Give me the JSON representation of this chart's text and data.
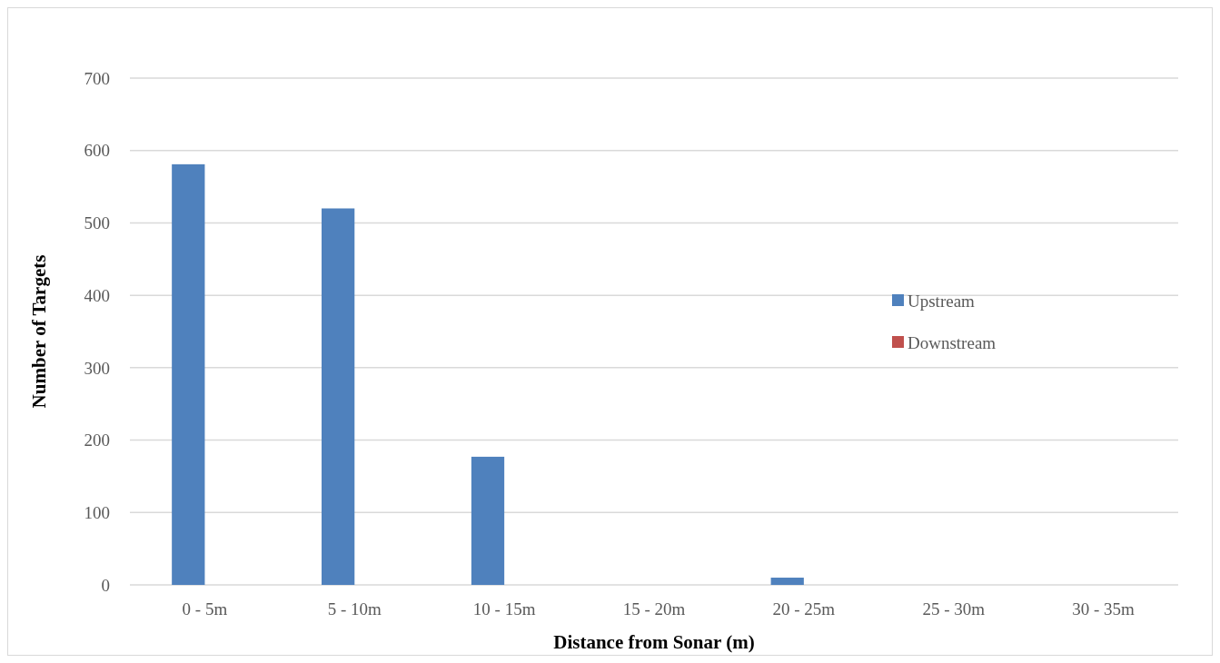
{
  "chart_data": {
    "type": "bar",
    "xlabel": "Distance from Sonar (m)",
    "ylabel": "Number of Targets",
    "categories": [
      "0 - 5m",
      "5 - 10m",
      "10 - 15m",
      "15 - 20m",
      "20 - 25m",
      "25 - 30m",
      "30 - 35m"
    ],
    "series": [
      {
        "name": "Upstream",
        "color": "#4f81bd",
        "values": [
          581,
          520,
          177,
          0,
          10,
          0,
          0
        ]
      },
      {
        "name": "Downstream",
        "color": "#c0504d",
        "values": [
          0,
          0,
          0,
          0,
          0,
          0,
          0
        ]
      }
    ],
    "ylim": [
      0,
      700
    ],
    "yticks": [
      0,
      100,
      200,
      300,
      400,
      500,
      600,
      700
    ],
    "grid": "y",
    "legend": "right"
  }
}
